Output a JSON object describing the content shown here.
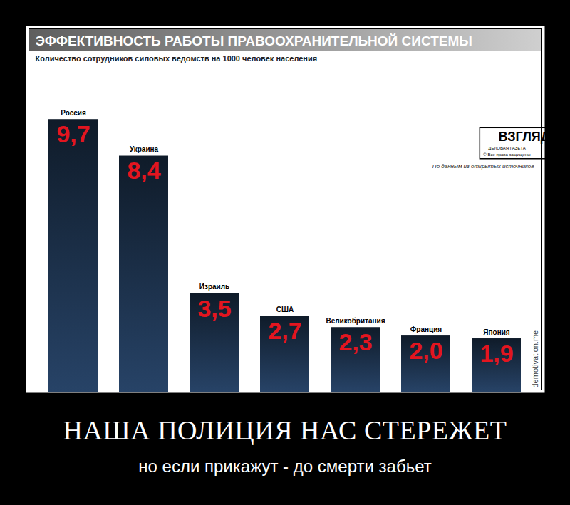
{
  "chart_data": {
    "type": "bar",
    "title": "ЭФФЕКТИВНОСТЬ РАБОТЫ ПРАВООХРАНИТЕЛЬНОЙ СИСТЕМЫ",
    "subtitle": "Количество сотрудников силовых ведомств на 1000 человек населения",
    "categories": [
      "Россия",
      "Украина",
      "Израиль",
      "США",
      "Великобритания",
      "Франция",
      "Япония"
    ],
    "values": [
      9.7,
      8.4,
      3.5,
      2.7,
      2.3,
      2.0,
      1.9
    ],
    "value_labels": [
      "9,7",
      "8,4",
      "3,5",
      "2,7",
      "2,3",
      "2,0",
      "1,9"
    ],
    "data_labels": true,
    "color": "#16263a",
    "ylim": [
      0,
      13
    ],
    "yticks": [],
    "grid": false,
    "tick_labels": false,
    "annotations": [
      "ВЗГЛЯД",
      "ДЕЛОВАЯ ГАЗЕТА",
      "© Все права защищены",
      "По данным из открытых источников"
    ]
  },
  "poster": {
    "caption": "НАША ПОЛИЦИЯ НАС СТЕРЕЖЕТ",
    "subcaption": "но если прикажут - до смерти забьет",
    "watermark": "demotivation.me"
  }
}
